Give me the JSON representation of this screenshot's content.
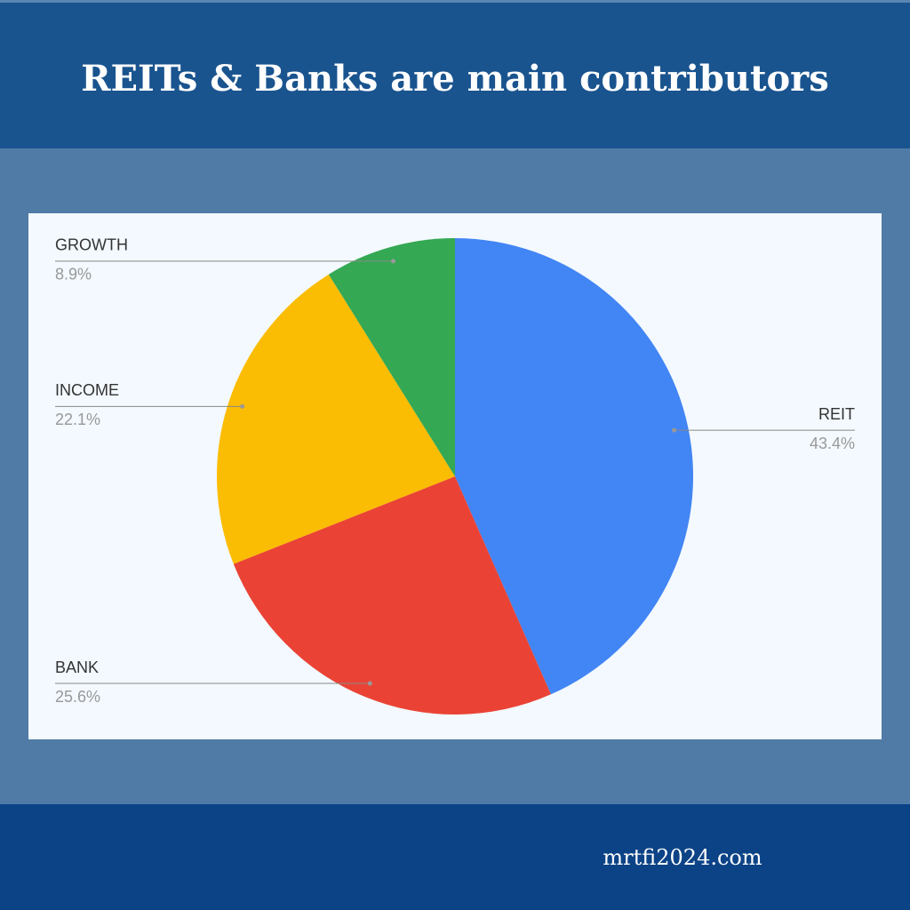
{
  "chart_data": {
    "type": "pie",
    "title": "REITs & Banks are main contributors",
    "footer": "mrtfi2024.com",
    "categories": [
      "REIT",
      "BANK",
      "INCOME",
      "GROWTH"
    ],
    "values": [
      43.4,
      25.6,
      22.1,
      8.9
    ],
    "value_labels": [
      "43.4%",
      "25.6%",
      "22.1%",
      "8.9%"
    ],
    "colors": [
      "#4285f4",
      "#ea4335",
      "#fbbc04",
      "#34a853"
    ]
  }
}
